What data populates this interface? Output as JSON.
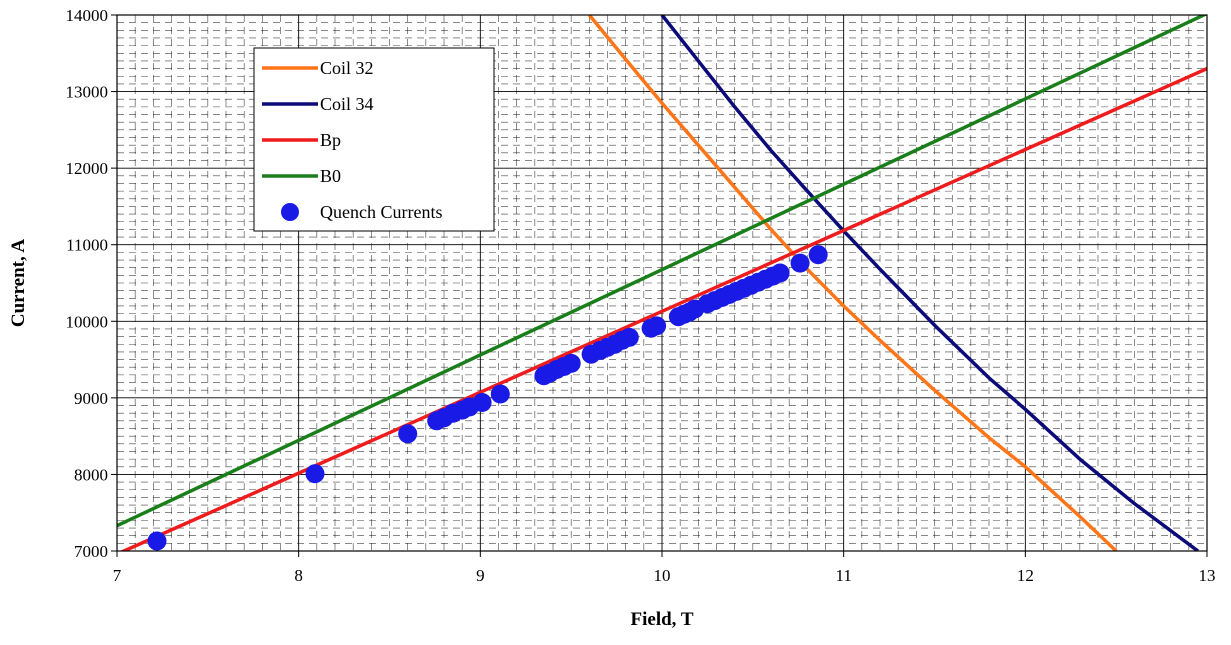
{
  "chart_data": {
    "type": "line",
    "title": "",
    "xlabel": "Field, T",
    "ylabel": "Current, A",
    "xlim": [
      7,
      13
    ],
    "ylim": [
      7000,
      14000
    ],
    "xticks": [
      7,
      8,
      9,
      10,
      11,
      12,
      13
    ],
    "xtick_labels": [
      "7",
      "8",
      "9",
      "10",
      "11",
      "12",
      "13"
    ],
    "yticks": [
      7000,
      8000,
      9000,
      10000,
      11000,
      12000,
      13000,
      14000
    ],
    "ytick_labels": [
      "7000",
      "8000",
      "9000",
      "10000",
      "11000",
      "12000",
      "13000",
      "14000"
    ],
    "grid": true,
    "legend_position": "top-left",
    "series": [
      {
        "name": "Coil 32",
        "kind": "line",
        "color": "#ff7518",
        "x": [
          9.6,
          9.8,
          10.0,
          10.2,
          10.4,
          10.6,
          10.8,
          11.0,
          11.2,
          11.5,
          11.8,
          12.0,
          12.3,
          12.5
        ],
        "y": [
          14000,
          13420,
          12850,
          12300,
          11750,
          11200,
          10680,
          10200,
          9750,
          9100,
          8480,
          8100,
          7450,
          7000
        ]
      },
      {
        "name": "Coil 34",
        "kind": "line",
        "color": "#0b0b7a",
        "x": [
          10.0,
          10.2,
          10.4,
          10.6,
          10.8,
          11.0,
          11.2,
          11.5,
          11.8,
          12.0,
          12.3,
          12.6,
          12.95
        ],
        "y": [
          14000,
          13400,
          12800,
          12230,
          11700,
          11180,
          10680,
          9950,
          9260,
          8850,
          8200,
          7620,
          7000
        ]
      },
      {
        "name": "Bp",
        "kind": "line",
        "color": "#ee1c1c",
        "x": [
          7.0,
          13.0
        ],
        "y": [
          6960,
          13300
        ]
      },
      {
        "name": "B0",
        "kind": "line",
        "color": "#1a7f1a",
        "x": [
          7.0,
          13.0
        ],
        "y": [
          7330,
          14020
        ]
      },
      {
        "name": "Quench Currents",
        "kind": "scatter",
        "color": "#1a1ae6",
        "x": [
          7.22,
          8.09,
          8.6,
          8.76,
          8.8,
          8.85,
          8.9,
          8.94,
          9.01,
          9.11,
          9.35,
          9.38,
          9.42,
          9.46,
          9.5,
          9.61,
          9.66,
          9.7,
          9.74,
          9.78,
          9.82,
          9.94,
          9.97,
          10.09,
          10.12,
          10.15,
          10.18,
          10.25,
          10.29,
          10.33,
          10.37,
          10.41,
          10.45,
          10.49,
          10.53,
          10.57,
          10.61,
          10.65,
          10.76,
          10.86
        ],
        "y": [
          7130,
          8010,
          8530,
          8700,
          8740,
          8800,
          8840,
          8880,
          8940,
          9050,
          9290,
          9320,
          9370,
          9410,
          9450,
          9570,
          9620,
          9660,
          9700,
          9750,
          9790,
          9910,
          9940,
          10060,
          10090,
          10120,
          10160,
          10230,
          10270,
          10310,
          10350,
          10390,
          10430,
          10470,
          10510,
          10550,
          10590,
          10630,
          10760,
          10870
        ]
      }
    ]
  }
}
